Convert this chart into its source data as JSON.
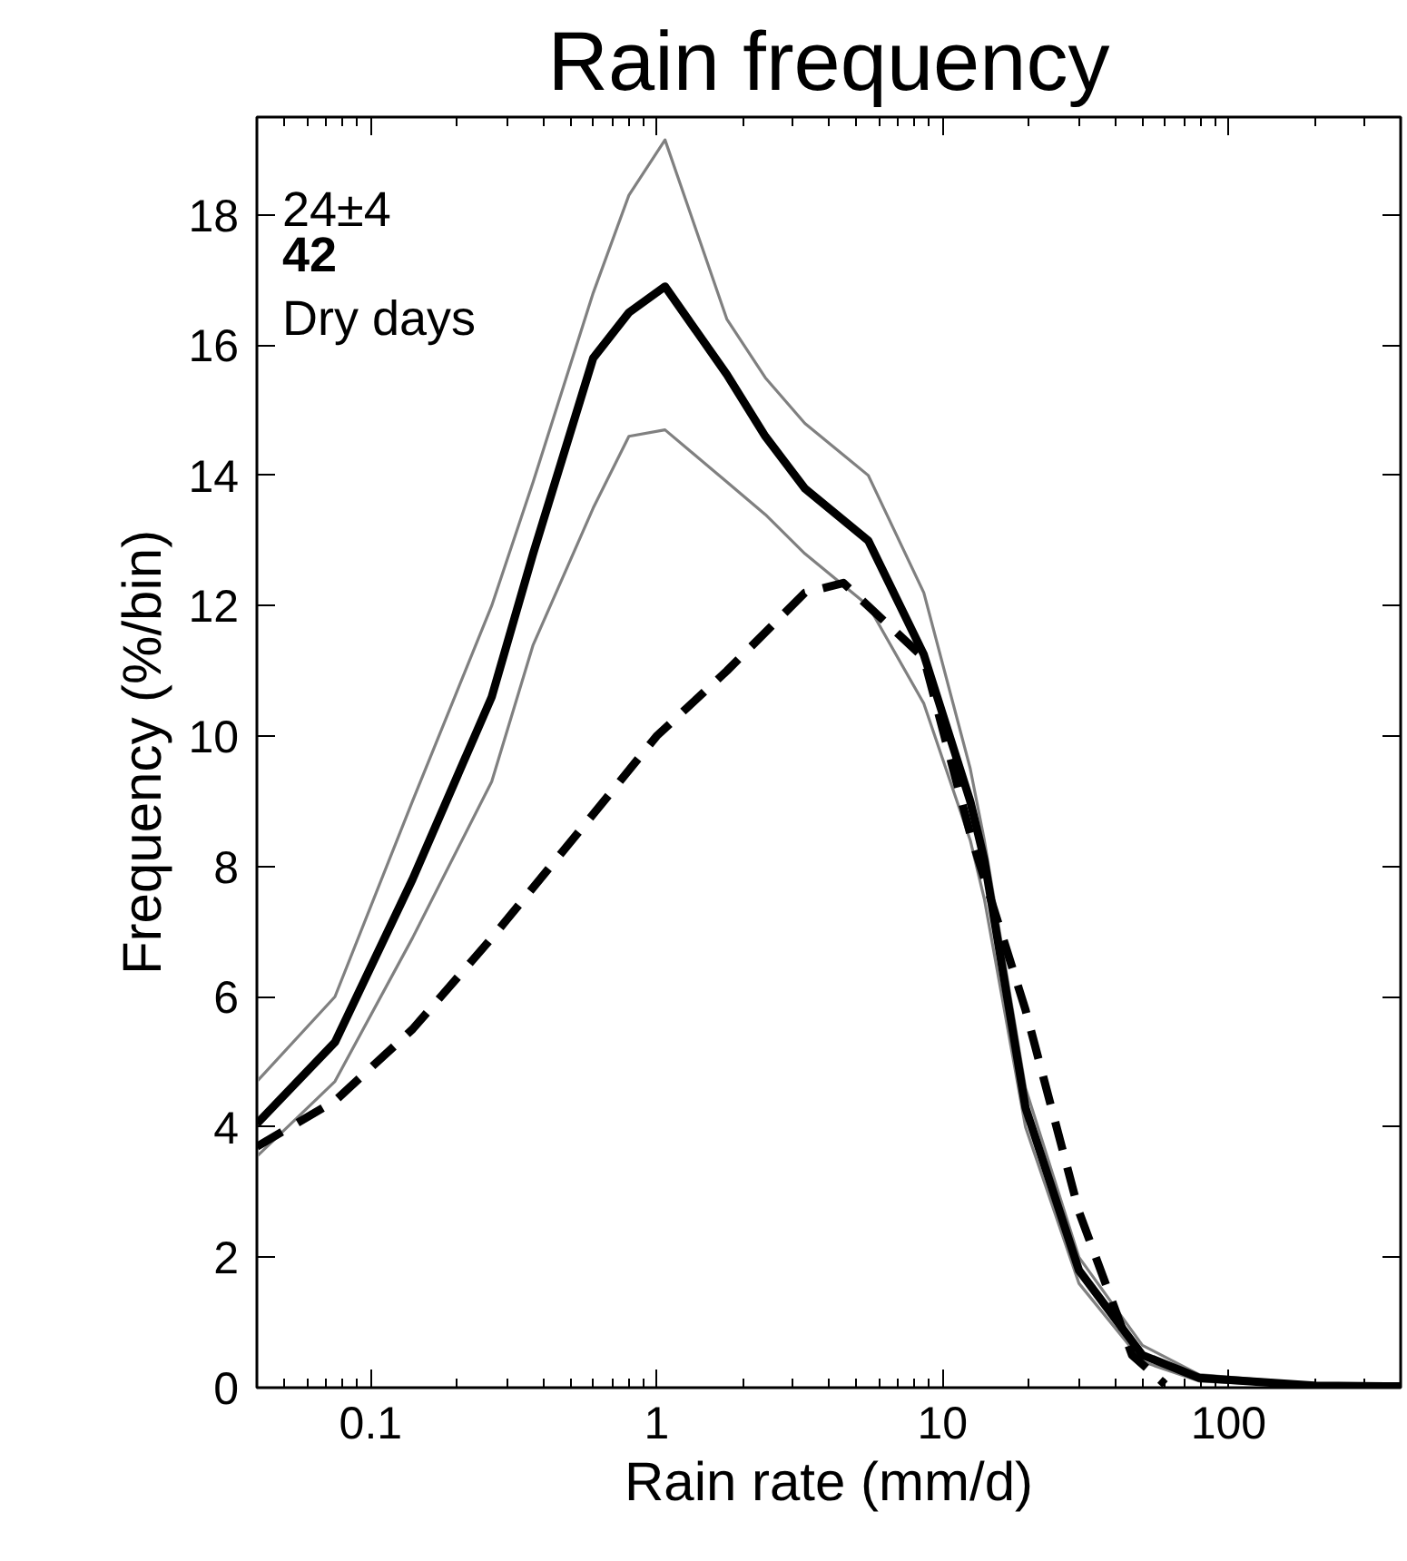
{
  "chart_data": {
    "type": "line",
    "title": "Rain frequency",
    "xlabel": "Rain rate (mm/d)",
    "ylabel": "Frequency (%/bin)",
    "annotations": [
      "24±4",
      "42",
      "Dry days"
    ],
    "log": "x",
    "grid": false,
    "marker": "none",
    "xlim": [
      0.04,
      400
    ],
    "xticks": [
      0.1,
      1,
      10,
      100
    ],
    "ylim": [
      0,
      19.5
    ],
    "yticks": [
      0,
      2,
      4,
      6,
      8,
      10,
      12,
      14,
      16,
      18
    ],
    "x": [
      0.04,
      0.075,
      0.14,
      0.265,
      0.37,
      0.6,
      0.8,
      1.07,
      1.76,
      2.4,
      3.3,
      5.5,
      8.6,
      12.5,
      14,
      19.5,
      30,
      50,
      79,
      200,
      400
    ],
    "series": [
      {
        "color": "#808080",
        "line_style": "solid",
        "values": [
          4.7,
          6.0,
          9.0,
          12.0,
          13.9,
          16.8,
          18.3,
          19.15,
          16.4,
          15.5,
          14.8,
          14.0,
          12.2,
          9.5,
          8.4,
          4.6,
          2.0,
          0.65,
          0.2,
          0.05,
          0.03
        ]
      },
      {
        "color": "#808080",
        "line_style": "solid",
        "values": [
          3.55,
          4.7,
          6.9,
          9.3,
          11.4,
          13.5,
          14.6,
          14.7,
          13.9,
          13.4,
          12.8,
          12.0,
          10.5,
          8.4,
          7.5,
          4.0,
          1.6,
          0.4,
          0.1,
          0.02,
          0.01
        ]
      },
      {
        "color": "#000000",
        "line_style": "solid",
        "values": [
          4.05,
          5.3,
          7.8,
          10.6,
          12.8,
          15.8,
          16.5,
          16.9,
          15.55,
          14.6,
          13.8,
          13.0,
          11.25,
          9.0,
          8.1,
          4.3,
          1.8,
          0.5,
          0.15,
          0.03,
          0.02
        ]
      },
      {
        "color": "#000000",
        "line_style": "dashed",
        "x": [
          0.04,
          0.075,
          0.14,
          0.265,
          0.6,
          1.0,
          1.76,
          3.3,
          4.5,
          8.6,
          12.5,
          19.5,
          30,
          46,
          60
        ],
        "values": [
          3.7,
          4.4,
          5.5,
          6.9,
          8.8,
          10.0,
          11.0,
          12.2,
          12.35,
          11.2,
          8.5,
          5.8,
          2.7,
          0.5,
          0.05
        ]
      }
    ]
  }
}
